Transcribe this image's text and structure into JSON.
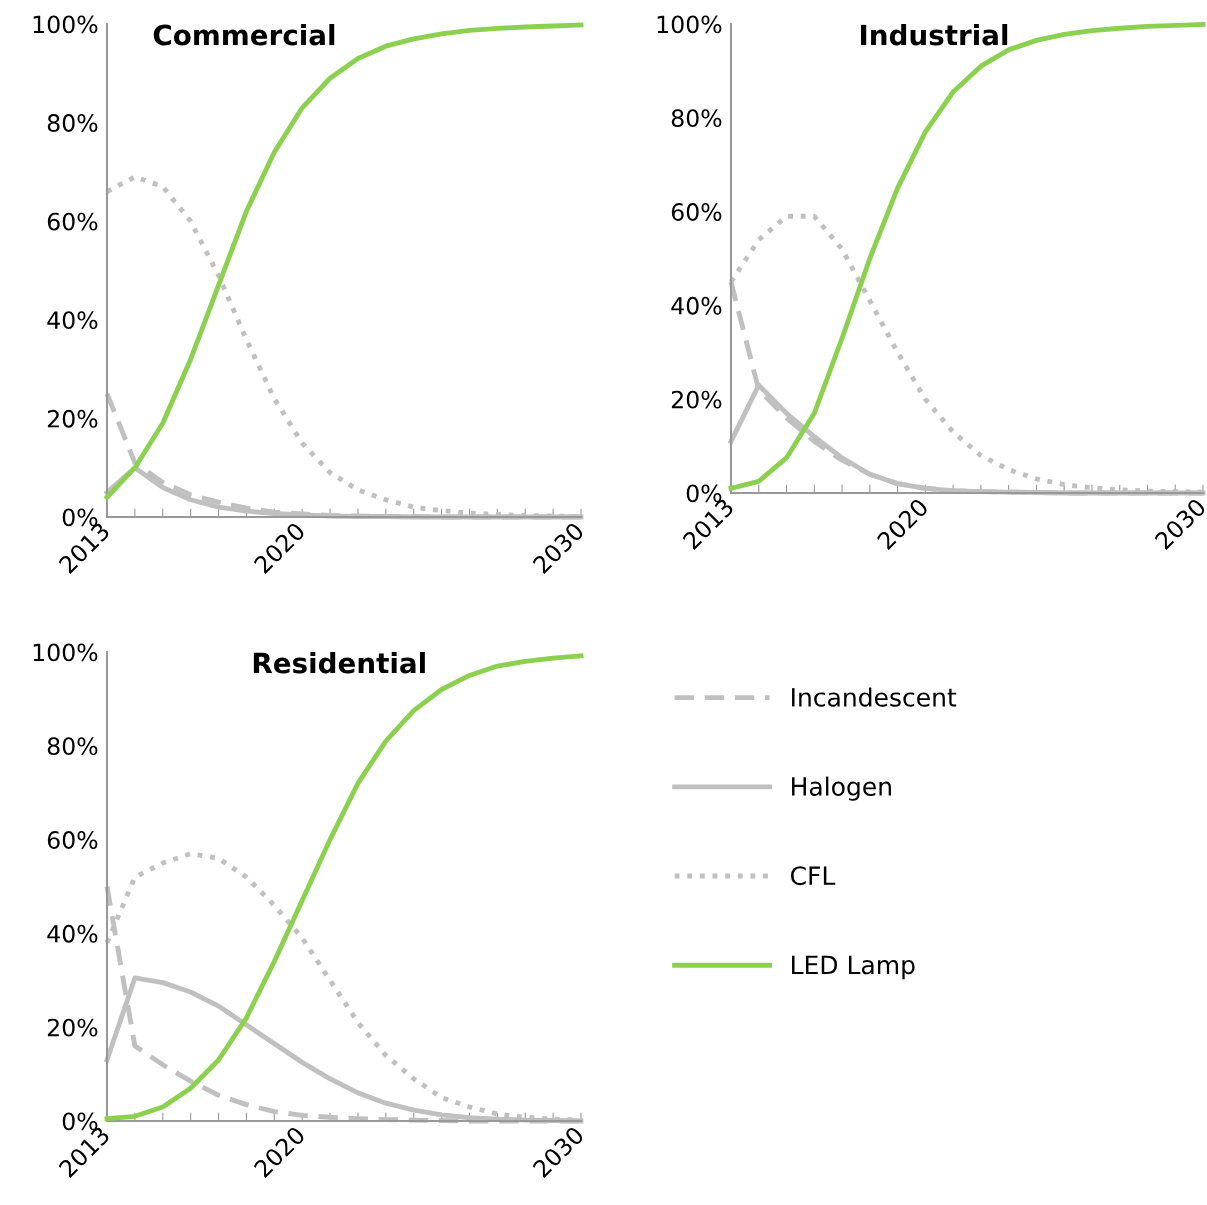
{
  "chart_data": [
    {
      "type": "line",
      "title": "Commercial",
      "x": [
        2013,
        2014,
        2015,
        2016,
        2017,
        2018,
        2019,
        2020,
        2021,
        2022,
        2023,
        2024,
        2025,
        2026,
        2027,
        2028,
        2029,
        2030
      ],
      "xlim": [
        2013,
        2030
      ],
      "xticks": [
        2013,
        {
          "value": 2014,
          "label": null
        },
        {
          "value": 2015,
          "label": null
        },
        {
          "value": 2016,
          "label": null
        },
        {
          "value": 2017,
          "label": null
        },
        {
          "value": 2018,
          "label": null
        },
        {
          "value": 2019,
          "label": null
        },
        2020,
        {
          "value": 2021,
          "label": null
        },
        {
          "value": 2022,
          "label": null
        },
        {
          "value": 2023,
          "label": null
        },
        {
          "value": 2024,
          "label": null
        },
        {
          "value": 2025,
          "label": null
        },
        {
          "value": 2026,
          "label": null
        },
        {
          "value": 2027,
          "label": null
        },
        {
          "value": 2028,
          "label": null
        },
        {
          "value": 2029,
          "label": null
        },
        2030
      ],
      "ylim": [
        0,
        100
      ],
      "yticks": [
        {
          "value": 0,
          "label": "0%"
        },
        {
          "value": 20,
          "label": "20%"
        },
        {
          "value": 40,
          "label": "40%"
        },
        {
          "value": 60,
          "label": "60%"
        },
        {
          "value": 80,
          "label": "80%"
        },
        {
          "value": 100,
          "label": "100%"
        }
      ],
      "grid": false,
      "legend": "bottom right",
      "series": [
        {
          "name": "Incandescent",
          "color": "#c0c0c0",
          "line_style": "dashed",
          "values": [
            25,
            11,
            7,
            4.5,
            3,
            1.8,
            1,
            0.6,
            0.3,
            0.2,
            0.1,
            0.1,
            0,
            0,
            0,
            0,
            0,
            0
          ]
        },
        {
          "name": "Halogen",
          "color": "#c0c0c0",
          "line_style": "solid",
          "values": [
            5,
            10,
            6,
            3.5,
            2,
            1.2,
            0.7,
            0.4,
            0.2,
            0.1,
            0.1,
            0,
            0,
            0,
            0,
            0,
            0,
            0
          ]
        },
        {
          "name": "CFL",
          "color": "#c0c0c0",
          "line_style": "dotted",
          "values": [
            66,
            69,
            67,
            60,
            49,
            36,
            24,
            15,
            9,
            5.5,
            3.5,
            2,
            1.3,
            0.8,
            0.5,
            0.3,
            0.2,
            0.1
          ]
        },
        {
          "name": "LED Lamp",
          "color": "#8cd050",
          "line_style": "solid",
          "values": [
            4,
            10,
            19,
            32,
            47,
            62,
            74,
            83,
            89,
            93,
            95.5,
            97,
            98,
            98.7,
            99.1,
            99.4,
            99.6,
            99.8
          ]
        }
      ]
    },
    {
      "type": "line",
      "title": "Industrial",
      "x": [
        2013,
        2014,
        2015,
        2016,
        2017,
        2018,
        2019,
        2020,
        2021,
        2022,
        2023,
        2024,
        2025,
        2026,
        2027,
        2028,
        2029,
        2030
      ],
      "xlim": [
        2013,
        2030
      ],
      "xticks": [
        2013,
        {
          "value": 2014,
          "label": null
        },
        {
          "value": 2015,
          "label": null
        },
        {
          "value": 2016,
          "label": null
        },
        {
          "value": 2017,
          "label": null
        },
        {
          "value": 2018,
          "label": null
        },
        {
          "value": 2019,
          "label": null
        },
        2020,
        {
          "value": 2021,
          "label": null
        },
        {
          "value": 2022,
          "label": null
        },
        {
          "value": 2023,
          "label": null
        },
        {
          "value": 2024,
          "label": null
        },
        {
          "value": 2025,
          "label": null
        },
        {
          "value": 2026,
          "label": null
        },
        {
          "value": 2027,
          "label": null
        },
        {
          "value": 2028,
          "label": null
        },
        {
          "value": 2029,
          "label": null
        },
        2030
      ],
      "ylim": [
        0,
        100
      ],
      "yticks": [
        {
          "value": 0,
          "label": "0%"
        },
        {
          "value": 20,
          "label": "20%"
        },
        {
          "value": 40,
          "label": "40%"
        },
        {
          "value": 60,
          "label": "60%"
        },
        {
          "value": 80,
          "label": "80%"
        },
        {
          "value": 100,
          "label": "100%"
        }
      ],
      "grid": false,
      "series": [
        {
          "color": "#c0c0c0",
          "line_style": "dashed",
          "values": [
            45,
            22,
            16,
            11,
            7,
            4,
            2,
            1,
            0.5,
            0.3,
            0.2,
            0.1,
            0,
            0,
            0,
            0,
            0,
            0
          ]
        },
        {
          "color": "#c0c0c0",
          "line_style": "solid",
          "values": [
            11,
            23,
            17,
            12,
            7.5,
            4,
            2,
            1,
            0.5,
            0.3,
            0.2,
            0.1,
            0,
            0,
            0,
            0,
            0,
            0
          ]
        },
        {
          "color": "#c0c0c0",
          "line_style": "dotted",
          "values": [
            45,
            54,
            59,
            59,
            52,
            41,
            30,
            20,
            13,
            8,
            5,
            3,
            1.8,
            1.1,
            0.7,
            0.4,
            0.3,
            0.2
          ]
        },
        {
          "color": "#8cd050",
          "line_style": "solid",
          "values": [
            1,
            2.5,
            7.5,
            17,
            33,
            50,
            65,
            77,
            85.5,
            91,
            94.5,
            96.5,
            97.8,
            98.6,
            99.1,
            99.5,
            99.7,
            99.9
          ]
        }
      ]
    },
    {
      "type": "line",
      "title": "Residential",
      "x": [
        2013,
        2014,
        2015,
        2016,
        2017,
        2018,
        2019,
        2020,
        2021,
        2022,
        2023,
        2024,
        2025,
        2026,
        2027,
        2028,
        2029,
        2030
      ],
      "xlim": [
        2013,
        2030
      ],
      "xticks": [
        2013,
        {
          "value": 2014,
          "label": null
        },
        {
          "value": 2015,
          "label": null
        },
        {
          "value": 2016,
          "label": null
        },
        {
          "value": 2017,
          "label": null
        },
        {
          "value": 2018,
          "label": null
        },
        {
          "value": 2019,
          "label": null
        },
        2020,
        {
          "value": 2021,
          "label": null
        },
        {
          "value": 2022,
          "label": null
        },
        {
          "value": 2023,
          "label": null
        },
        {
          "value": 2024,
          "label": null
        },
        {
          "value": 2025,
          "label": null
        },
        {
          "value": 2026,
          "label": null
        },
        {
          "value": 2027,
          "label": null
        },
        {
          "value": 2028,
          "label": null
        },
        {
          "value": 2029,
          "label": null
        },
        2030
      ],
      "ylim": [
        0,
        100
      ],
      "yticks": [
        {
          "value": 0,
          "label": "0%"
        },
        {
          "value": 20,
          "label": "20%"
        },
        {
          "value": 40,
          "label": "40%"
        },
        {
          "value": 60,
          "label": "60%"
        },
        {
          "value": 80,
          "label": "80%"
        },
        {
          "value": 100,
          "label": "100%"
        }
      ],
      "grid": false,
      "series": [
        {
          "color": "#c0c0c0",
          "line_style": "dashed",
          "values": [
            50,
            16,
            12,
            8.5,
            5.5,
            3.5,
            2,
            1.2,
            0.8,
            0.5,
            0.3,
            0.2,
            0.1,
            0,
            0,
            0,
            0,
            0
          ]
        },
        {
          "color": "#c0c0c0",
          "line_style": "solid",
          "values": [
            13,
            30.5,
            29.5,
            27.5,
            24.5,
            20.5,
            16.5,
            12.5,
            9,
            6,
            3.8,
            2.3,
            1.3,
            0.7,
            0.4,
            0.2,
            0.1,
            0
          ]
        },
        {
          "color": "#c0c0c0",
          "line_style": "dotted",
          "values": [
            38,
            52,
            55,
            57,
            56,
            52,
            46,
            39,
            30,
            21,
            14,
            9,
            5,
            3,
            1.5,
            0.8,
            0.4,
            0.2
          ]
        },
        {
          "color": "#8cd050",
          "line_style": "solid",
          "values": [
            0.5,
            1,
            3,
            7,
            13,
            22,
            34,
            47,
            60,
            72,
            81,
            87.5,
            92,
            95,
            97,
            98,
            98.7,
            99.2
          ]
        }
      ]
    }
  ]
}
